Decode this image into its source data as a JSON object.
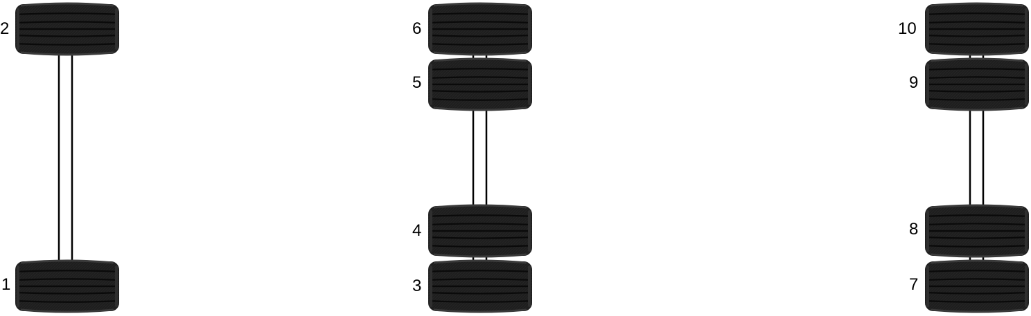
{
  "colors": {
    "background": "#ffffff",
    "tire": "#1e1e1e",
    "tire_edge": "#3a3a3a",
    "groove": "#0a0a0a",
    "shaft_line": "#000000",
    "label": "#000000"
  },
  "axles": [
    {
      "name": "axle-1",
      "tires": [
        {
          "number": "2",
          "icon": "tire-icon"
        },
        {
          "number": "1",
          "icon": "tire-icon"
        }
      ]
    },
    {
      "name": "axle-2",
      "tires": [
        {
          "number": "6",
          "icon": "tire-icon"
        },
        {
          "number": "5",
          "icon": "tire-icon"
        },
        {
          "number": "4",
          "icon": "tire-icon"
        },
        {
          "number": "3",
          "icon": "tire-icon"
        }
      ]
    },
    {
      "name": "axle-3",
      "tires": [
        {
          "number": "10",
          "icon": "tire-icon"
        },
        {
          "number": "9",
          "icon": "tire-icon"
        },
        {
          "number": "8",
          "icon": "tire-icon"
        },
        {
          "number": "7",
          "icon": "tire-icon"
        }
      ]
    }
  ]
}
